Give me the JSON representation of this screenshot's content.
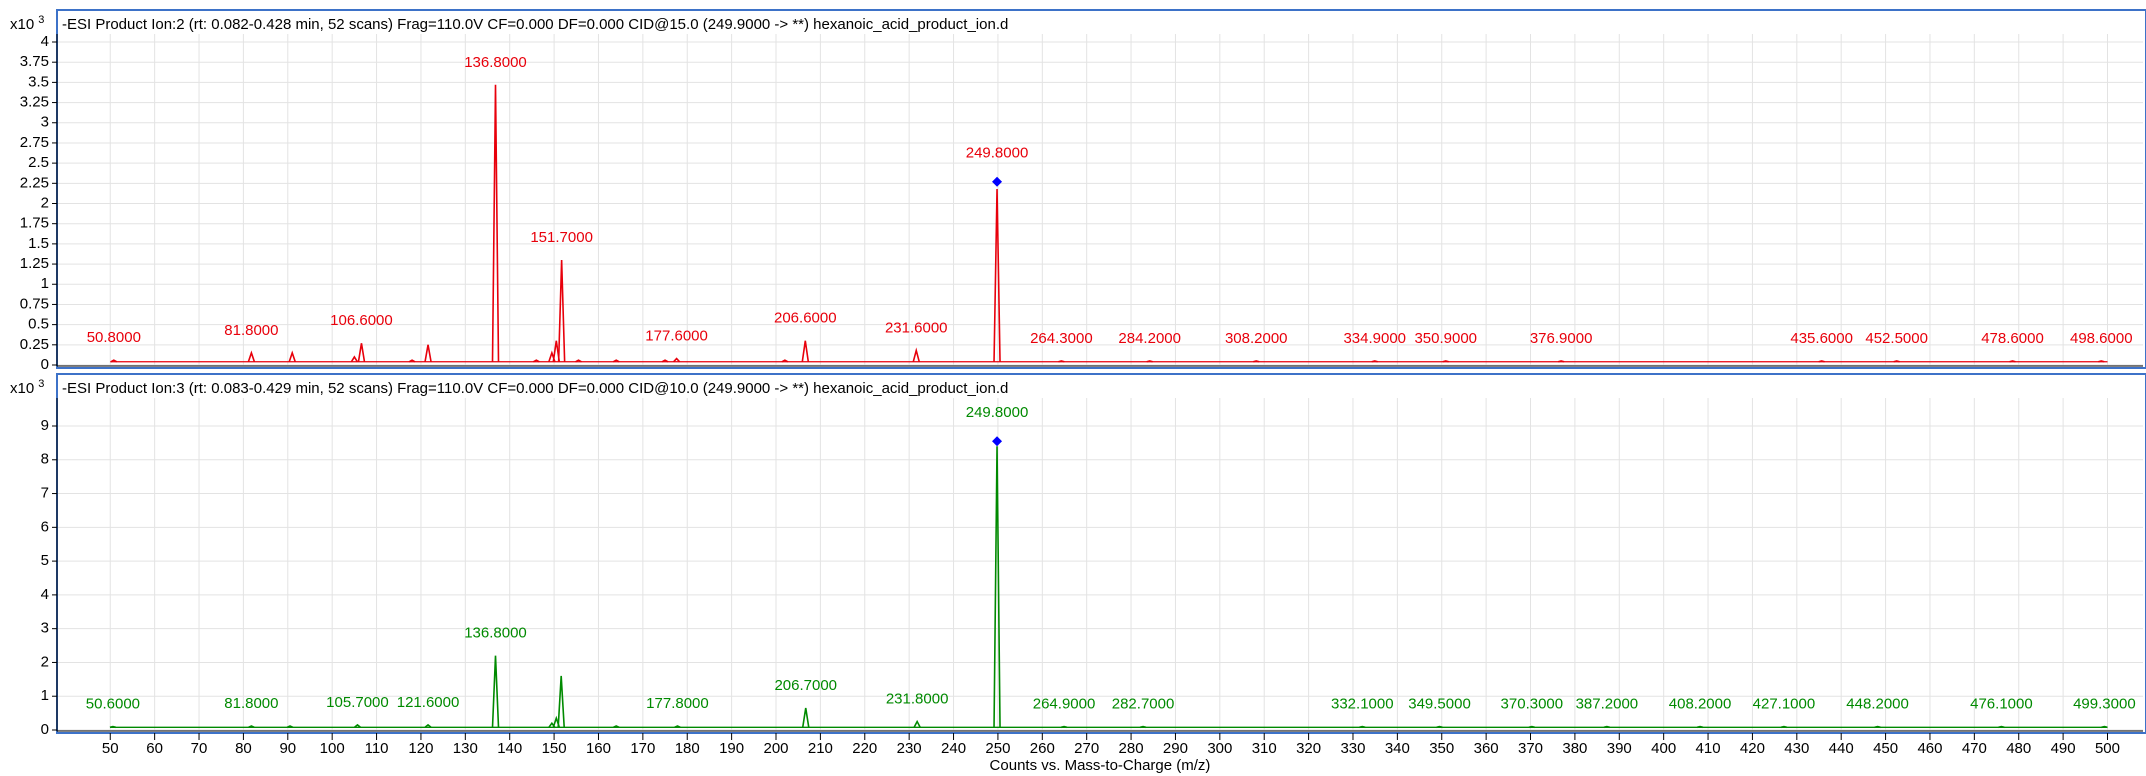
{
  "chart_data": [
    {
      "type": "spectrum",
      "title": "-ESI Product Ion:2 (rt: 0.082-0.428 min, 52 scans) Frag=110.0V CF=0.000 DF=0.000 CID@15.0 (249.9000 -> **) hexanoic_acid_product_ion.d",
      "y_scale_label": "x10",
      "y_scale_exponent": "3",
      "color": "#e8000b",
      "xlim": [
        38,
        508
      ],
      "xticks": [
        50,
        60,
        70,
        80,
        90,
        100,
        110,
        120,
        130,
        140,
        150,
        160,
        170,
        180,
        190,
        200,
        210,
        220,
        230,
        240,
        250,
        260,
        270,
        280,
        290,
        300,
        310,
        320,
        330,
        340,
        350,
        360,
        370,
        380,
        390,
        400,
        410,
        420,
        430,
        440,
        450,
        460,
        470,
        480,
        490,
        500
      ],
      "show_xtick_labels": false,
      "ylim": [
        0,
        4
      ],
      "yticks": [
        0,
        0.25,
        0.5,
        0.75,
        1,
        1.25,
        1.5,
        1.75,
        2,
        2.25,
        2.5,
        2.75,
        3,
        3.25,
        3.5,
        3.75,
        4
      ],
      "grid": true,
      "baseline": 0.04,
      "scan_range": [
        50,
        500
      ],
      "peaks": {
        "x": [
          50.8,
          81.8,
          91.0,
          105.0,
          106.6,
          118,
          121.6,
          136.8,
          146,
          149.5,
          150.5,
          151.7,
          155.5,
          164,
          175,
          177.6,
          202,
          206.6,
          231.6,
          249.8,
          264.3,
          284.2,
          308.2,
          334.9,
          350.9,
          376.9,
          435.6,
          452.5,
          478.6,
          498.6
        ],
        "values": [
          0.06,
          0.15,
          0.15,
          0.1,
          0.27,
          0.06,
          0.25,
          3.47,
          0.06,
          0.15,
          0.3,
          1.3,
          0.06,
          0.06,
          0.06,
          0.08,
          0.06,
          0.3,
          0.18,
          2.18,
          0.05,
          0.05,
          0.05,
          0.05,
          0.05,
          0.05,
          0.05,
          0.05,
          0.05,
          0.05
        ]
      },
      "marker": {
        "x": 249.8,
        "y": 2.27,
        "color": "#0000ff"
      },
      "annotations": [
        {
          "x": 50.8,
          "label": "50.8000"
        },
        {
          "x": 81.8,
          "label": "81.8000"
        },
        {
          "x": 106.6,
          "label": "106.6000"
        },
        {
          "x": 136.8,
          "label": "136.8000"
        },
        {
          "x": 151.7,
          "label": "151.7000"
        },
        {
          "x": 177.6,
          "label": "177.6000"
        },
        {
          "x": 206.6,
          "label": "206.6000"
        },
        {
          "x": 231.6,
          "label": "231.6000"
        },
        {
          "x": 249.8,
          "label": "249.8000"
        },
        {
          "x": 264.3,
          "label": "264.3000"
        },
        {
          "x": 284.2,
          "label": "284.2000"
        },
        {
          "x": 308.2,
          "label": "308.2000"
        },
        {
          "x": 334.9,
          "label": "334.9000"
        },
        {
          "x": 350.9,
          "label": "350.9000"
        },
        {
          "x": 376.9,
          "label": "376.9000"
        },
        {
          "x": 435.6,
          "label": "435.6000"
        },
        {
          "x": 452.5,
          "label": "452.5000"
        },
        {
          "x": 478.6,
          "label": "478.6000"
        },
        {
          "x": 498.6,
          "label": "498.6000"
        }
      ]
    },
    {
      "type": "spectrum",
      "title": "-ESI Product Ion:3 (rt: 0.083-0.429 min, 52 scans) Frag=110.0V CF=0.000 DF=0.000 CID@10.0 (249.9000 -> **) hexanoic_acid_product_ion.d",
      "y_scale_label": "x10",
      "y_scale_exponent": "3",
      "xlabel": "Counts vs. Mass-to-Charge (m/z)",
      "color": "#008a00",
      "xlim": [
        38,
        508
      ],
      "xticks": [
        50,
        60,
        70,
        80,
        90,
        100,
        110,
        120,
        130,
        140,
        150,
        160,
        170,
        180,
        190,
        200,
        210,
        220,
        230,
        240,
        250,
        260,
        270,
        280,
        290,
        300,
        310,
        320,
        330,
        340,
        350,
        360,
        370,
        380,
        390,
        400,
        410,
        420,
        430,
        440,
        450,
        460,
        470,
        480,
        490,
        500
      ],
      "show_xtick_labels": true,
      "ylim": [
        0,
        9.4
      ],
      "yticks": [
        0,
        1,
        2,
        3,
        4,
        5,
        6,
        7,
        8,
        9
      ],
      "grid": true,
      "baseline": 0.08,
      "scan_range": [
        50,
        500
      ],
      "peaks": {
        "x": [
          50.6,
          81.8,
          90.5,
          105.7,
          121.6,
          136.8,
          149.5,
          150.5,
          151.6,
          164,
          177.8,
          206.7,
          231.8,
          249.8,
          264.9,
          282.7,
          332.1,
          349.5,
          370.3,
          387.2,
          408.2,
          427.1,
          448.2,
          476.1,
          499.3
        ],
        "values": [
          0.1,
          0.12,
          0.12,
          0.15,
          0.15,
          2.2,
          0.2,
          0.35,
          1.6,
          0.12,
          0.12,
          0.65,
          0.25,
          8.4,
          0.1,
          0.1,
          0.1,
          0.1,
          0.1,
          0.1,
          0.1,
          0.1,
          0.1,
          0.1,
          0.1
        ]
      },
      "marker": {
        "x": 249.8,
        "y": 8.55,
        "color": "#0000ff"
      },
      "annotations": [
        {
          "x": 50.6,
          "label": "50.6000"
        },
        {
          "x": 81.8,
          "label": "81.8000"
        },
        {
          "x": 105.7,
          "label": "105.7000"
        },
        {
          "x": 121.6,
          "label": "121.6000"
        },
        {
          "x": 136.8,
          "label": "136.8000"
        },
        {
          "x": 177.8,
          "label": "177.8000"
        },
        {
          "x": 206.7,
          "label": "206.7000"
        },
        {
          "x": 231.8,
          "label": "231.8000"
        },
        {
          "x": 249.8,
          "label": "249.8000"
        },
        {
          "x": 264.9,
          "label": "264.9000"
        },
        {
          "x": 282.7,
          "label": "282.7000"
        },
        {
          "x": 332.1,
          "label": "332.1000"
        },
        {
          "x": 349.5,
          "label": "349.5000"
        },
        {
          "x": 370.3,
          "label": "370.3000"
        },
        {
          "x": 387.2,
          "label": "387.2000"
        },
        {
          "x": 408.2,
          "label": "408.2000"
        },
        {
          "x": 427.1,
          "label": "427.1000"
        },
        {
          "x": 448.2,
          "label": "448.2000"
        },
        {
          "x": 476.1,
          "label": "476.1000"
        },
        {
          "x": 499.3,
          "label": "499.3000"
        }
      ]
    }
  ]
}
